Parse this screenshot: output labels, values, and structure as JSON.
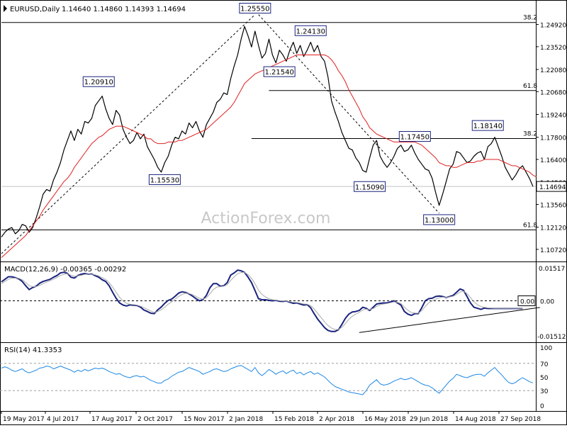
{
  "chart_data": {
    "type": "line",
    "title": "EURUSD,Daily",
    "ohlc_text": "1.14640 1.14860 1.14393 1.14694",
    "last_price": "1.14694",
    "watermark": "ActionForex.com",
    "x_ticks": [
      "19 May 2017",
      "4 Jul 2017",
      "17 Aug 2017",
      "2 Oct 2017",
      "15 Nov 2017",
      "2 Jan 2018",
      "15 Feb 2018",
      "2 Apr 2018",
      "16 May 2018",
      "29 Jun 2018",
      "14 Aug 2018",
      "27 Sep 2018"
    ],
    "price_panel": {
      "ylim": [
        1.1,
        1.262
      ],
      "y_ticks": [
        "1.24920",
        "1.23520",
        "1.22080",
        "1.20680",
        "1.19240",
        "1.17800",
        "1.16400",
        "1.14960",
        "1.13560",
        "1.12120",
        "1.10720"
      ],
      "series": [
        {
          "type": "close",
          "color": "#000000",
          "values": [
            1.115,
            1.118,
            1.12,
            1.121,
            1.117,
            1.119,
            1.123,
            1.122,
            1.118,
            1.121,
            1.127,
            1.134,
            1.142,
            1.145,
            1.144,
            1.151,
            1.156,
            1.162,
            1.17,
            1.176,
            1.182,
            1.176,
            1.183,
            1.18,
            1.188,
            1.187,
            1.19,
            1.198,
            1.201,
            1.204,
            1.196,
            1.19,
            1.186,
            1.195,
            1.192,
            1.183,
            1.178,
            1.174,
            1.176,
            1.181,
            1.177,
            1.18,
            1.172,
            1.168,
            1.164,
            1.159,
            1.156,
            1.162,
            1.166,
            1.173,
            1.178,
            1.177,
            1.182,
            1.18,
            1.187,
            1.184,
            1.188,
            1.182,
            1.178,
            1.186,
            1.19,
            1.194,
            1.2,
            1.202,
            1.206,
            1.205,
            1.215,
            1.223,
            1.23,
            1.24,
            1.248,
            1.242,
            1.235,
            1.245,
            1.236,
            1.228,
            1.231,
            1.24,
            1.23,
            1.225,
            1.233,
            1.23,
            1.226,
            1.233,
            1.238,
            1.231,
            1.236,
            1.229,
            1.233,
            1.238,
            1.232,
            1.236,
            1.229,
            1.226,
            1.216,
            1.201,
            1.194,
            1.188,
            1.181,
            1.176,
            1.171,
            1.17,
            1.165,
            1.162,
            1.157,
            1.156,
            1.165,
            1.173,
            1.176,
            1.166,
            1.162,
            1.159,
            1.162,
            1.166,
            1.171,
            1.173,
            1.169,
            1.17,
            1.173,
            1.168,
            1.164,
            1.161,
            1.158,
            1.157,
            1.152,
            1.143,
            1.135,
            1.142,
            1.15,
            1.158,
            1.161,
            1.169,
            1.168,
            1.165,
            1.162,
            1.163,
            1.166,
            1.168,
            1.169,
            1.164,
            1.172,
            1.174,
            1.178,
            1.172,
            1.166,
            1.159,
            1.155,
            1.151,
            1.154,
            1.158,
            1.16,
            1.156,
            1.152,
            1.1469
          ]
        },
        {
          "type": "ma",
          "color": "#e02020",
          "values": [
            1.102,
            1.104,
            1.106,
            1.108,
            1.11,
            1.112,
            1.114,
            1.116,
            1.119,
            1.122,
            1.125,
            1.128,
            1.132,
            1.135,
            1.138,
            1.141,
            1.144,
            1.147,
            1.15,
            1.152,
            1.155,
            1.159,
            1.162,
            1.165,
            1.168,
            1.171,
            1.174,
            1.176,
            1.178,
            1.179,
            1.181,
            1.183,
            1.184,
            1.185,
            1.185,
            1.185,
            1.184,
            1.183,
            1.182,
            1.181,
            1.18,
            1.179,
            1.177,
            1.177,
            1.175,
            1.174,
            1.174,
            1.174,
            1.175,
            1.175,
            1.175,
            1.176,
            1.176,
            1.177,
            1.178,
            1.179,
            1.18,
            1.181,
            1.182,
            1.183,
            1.185,
            1.187,
            1.189,
            1.191,
            1.193,
            1.195,
            1.197,
            1.2,
            1.204,
            1.208,
            1.212,
            1.214,
            1.216,
            1.218,
            1.219,
            1.22,
            1.221,
            1.222,
            1.223,
            1.224,
            1.225,
            1.226,
            1.227,
            1.228,
            1.229,
            1.23,
            1.23,
            1.23,
            1.23,
            1.23,
            1.23,
            1.23,
            1.23,
            1.23,
            1.229,
            1.227,
            1.224,
            1.22,
            1.217,
            1.213,
            1.208,
            1.204,
            1.2,
            1.196,
            1.191,
            1.188,
            1.184,
            1.182,
            1.18,
            1.179,
            1.178,
            1.177,
            1.176,
            1.175,
            1.175,
            1.175,
            1.175,
            1.175,
            1.175,
            1.175,
            1.174,
            1.173,
            1.171,
            1.169,
            1.167,
            1.165,
            1.162,
            1.161,
            1.16,
            1.16,
            1.159,
            1.159,
            1.16,
            1.161,
            1.162,
            1.162,
            1.162,
            1.163,
            1.163,
            1.164,
            1.164,
            1.164,
            1.164,
            1.164,
            1.163,
            1.162,
            1.161,
            1.16,
            1.16,
            1.159,
            1.158,
            1.157,
            1.156,
            1.154,
            1.153
          ]
        }
      ],
      "annotations": [
        {
          "label": "1.25550",
          "x": 73,
          "y": 1.2555
        },
        {
          "label": "1.24130",
          "x": 89,
          "y": 1.2413
        },
        {
          "label": "1.21540",
          "x": 80,
          "y": 1.2154
        },
        {
          "label": "1.20910",
          "x": 28,
          "y": 1.2091
        },
        {
          "label": "1.15530",
          "x": 47,
          "y": 1.1553
        },
        {
          "label": "1.15090",
          "x": 106,
          "y": 1.1509
        },
        {
          "label": "1.17450",
          "x": 119,
          "y": 1.1745
        },
        {
          "label": "1.18140",
          "x": 140,
          "y": 1.1814
        },
        {
          "label": "1.13000",
          "x": 126,
          "y": 1.13
        }
      ],
      "fib_levels": [
        {
          "label": "38.2",
          "y": 1.2505,
          "x_start": 0
        },
        {
          "label": "61.8",
          "y": 1.2075,
          "x_start": 77
        },
        {
          "label": "38.2",
          "y": 1.1772,
          "x_start": 72
        },
        {
          "label": "61.8",
          "y": 1.1195,
          "x_start": 0
        }
      ],
      "trend_lines": [
        {
          "x1": 0,
          "y1": 1.1045,
          "x2": 73,
          "y2": 1.2555
        },
        {
          "x1": 74,
          "y1": 1.2555,
          "x2": 126,
          "y2": 1.13
        }
      ]
    },
    "macd_panel": {
      "label": "MACD(12,26,9) -0.00365 -0.00292",
      "ylim": [
        -0.019,
        0.018
      ],
      "y_ticks": [
        "0.01517",
        "0.00",
        "-0.01512"
      ],
      "zero_tag": "0.00",
      "series": [
        {
          "type": "macd",
          "color": "#1a237e",
          "values": [
            0.0088,
            0.01,
            0.0112,
            0.0112,
            0.0108,
            0.0102,
            0.009,
            0.007,
            0.0052,
            0.0062,
            0.0068,
            0.0082,
            0.009,
            0.0095,
            0.01,
            0.011,
            0.0118,
            0.013,
            0.0133,
            0.0128,
            0.011,
            0.0106,
            0.0118,
            0.0124,
            0.0127,
            0.0124,
            0.0125,
            0.0117,
            0.011,
            0.0098,
            0.009,
            0.007,
            0.004,
            0.0012,
            -0.001,
            -0.002,
            -0.0024,
            -0.0019,
            -0.0021,
            -0.0022,
            -0.0029,
            -0.0043,
            -0.005,
            -0.0058,
            -0.006,
            -0.0042,
            -0.0029,
            -0.0012,
            0.0002,
            0.0008,
            0.0021,
            0.0036,
            0.0042,
            0.0039,
            0.0032,
            0.0022,
            0.001,
            0.0,
            0.0005,
            0.0025,
            0.006,
            0.008,
            0.008,
            0.0068,
            0.007,
            0.0085,
            0.012,
            0.013,
            0.0143,
            0.014,
            0.0132,
            0.011,
            0.0085,
            0.0048,
            0.001,
            0.0005,
            0.0005,
            0.0002,
            0.0,
            0.0002,
            -0.0002,
            -0.0003,
            -0.0001,
            -0.0007,
            -0.0012,
            -0.001,
            -0.0015,
            -0.002,
            -0.0018,
            -0.0032,
            -0.006,
            -0.0085,
            -0.0105,
            -0.0125,
            -0.0138,
            -0.0143,
            -0.0143,
            -0.0135,
            -0.011,
            -0.0082,
            -0.0062,
            -0.0052,
            -0.005,
            -0.0045,
            -0.003,
            -0.0035,
            -0.0045,
            -0.003,
            -0.0015,
            -0.0012,
            -0.001,
            -0.001,
            -0.0005,
            0.0,
            -0.001,
            -0.002,
            -0.005,
            -0.0062,
            -0.0068,
            -0.006,
            -0.006,
            -0.0032,
            0.0,
            0.001,
            0.0012,
            0.002,
            0.0022,
            0.002,
            0.0015,
            0.002,
            0.0025,
            0.004,
            0.0055,
            0.0049,
            0.002,
            -0.001,
            -0.003,
            -0.0035,
            -0.004,
            -0.0034,
            -0.0036,
            -0.0036,
            -0.0036,
            -0.0036,
            -0.0036,
            -0.0036,
            -0.0036,
            -0.0036,
            -0.0036,
            -0.0036,
            -0.0036
          ]
        },
        {
          "type": "signal",
          "color": "#aaaaaa",
          "values": [
            0.008,
            0.009,
            0.01,
            0.0105,
            0.0106,
            0.0105,
            0.0098,
            0.0085,
            0.007,
            0.0066,
            0.0066,
            0.0072,
            0.008,
            0.0087,
            0.0093,
            0.0101,
            0.0109,
            0.0118,
            0.0124,
            0.0126,
            0.012,
            0.0114,
            0.0116,
            0.0119,
            0.0123,
            0.0124,
            0.0124,
            0.0121,
            0.0116,
            0.0108,
            0.0099,
            0.0085,
            0.0064,
            0.004,
            0.0016,
            -0.0001,
            -0.0012,
            -0.0016,
            -0.0018,
            -0.002,
            -0.0025,
            -0.0032,
            -0.004,
            -0.0048,
            -0.0054,
            -0.005,
            -0.0042,
            -0.003,
            -0.0016,
            -0.0005,
            0.0008,
            0.002,
            0.003,
            0.0035,
            0.0034,
            0.0029,
            0.002,
            0.0012,
            0.0008,
            0.0014,
            0.0032,
            0.0052,
            0.0064,
            0.0066,
            0.0068,
            0.0075,
            0.0095,
            0.0112,
            0.0126,
            0.0132,
            0.0132,
            0.0122,
            0.0105,
            0.008,
            0.005,
            0.003,
            0.0018,
            0.001,
            0.0005,
            0.0003,
            0.0001,
            -0.0001,
            -0.0001,
            -0.0004,
            -0.0007,
            -0.0008,
            -0.0011,
            -0.0015,
            -0.0016,
            -0.0023,
            -0.0038,
            -0.0058,
            -0.0078,
            -0.0098,
            -0.0115,
            -0.0127,
            -0.0134,
            -0.0134,
            -0.0124,
            -0.0106,
            -0.0087,
            -0.0072,
            -0.0062,
            -0.0054,
            -0.0043,
            -0.0039,
            -0.0041,
            -0.0036,
            -0.0026,
            -0.0019,
            -0.0015,
            -0.0013,
            -0.0009,
            -0.0005,
            -0.0007,
            -0.0013,
            -0.003,
            -0.0044,
            -0.0055,
            -0.0057,
            -0.0058,
            -0.0046,
            -0.0026,
            -0.001,
            0.0,
            0.0008,
            0.0014,
            0.0017,
            0.0016,
            0.0018,
            0.0021,
            0.003,
            0.0041,
            0.0045,
            0.0034,
            0.0015,
            -0.0005,
            -0.0018,
            -0.0027,
            -0.003,
            -0.0033,
            -0.0034,
            -0.0035,
            -0.0035,
            -0.0035,
            -0.0035,
            -0.0035,
            -0.0035,
            -0.0035,
            -0.0035,
            -0.0035
          ]
        }
      ],
      "trend_line": {
        "x1": 103,
        "y1": -0.0148,
        "x2": 155,
        "y2": -0.0031
      }
    },
    "rsi_panel": {
      "label": "RSI(14) 41.3353",
      "ylim": [
        0,
        100
      ],
      "y_ticks": [
        "100",
        "70",
        "50",
        "30",
        "0"
      ],
      "levels": [
        70,
        30
      ],
      "series": [
        {
          "type": "rsi",
          "color": "#1e88e5",
          "values": [
            63,
            65,
            63,
            60,
            58,
            60,
            62,
            58,
            56,
            58,
            60,
            63,
            64,
            66,
            65,
            62,
            64,
            66,
            64,
            62,
            60,
            57,
            60,
            58,
            61,
            59,
            61,
            63,
            62,
            63,
            61,
            58,
            56,
            54,
            55,
            52,
            50,
            49,
            51,
            52,
            50,
            51,
            48,
            45,
            43,
            41,
            41,
            45,
            47,
            51,
            54,
            57,
            58,
            61,
            64,
            62,
            60,
            58,
            54,
            56,
            58,
            61,
            62,
            60,
            58,
            59,
            62,
            64,
            66,
            67,
            64,
            61,
            58,
            64,
            56,
            52,
            56,
            61,
            58,
            54,
            57,
            59,
            55,
            58,
            60,
            55,
            57,
            53,
            56,
            58,
            54,
            56,
            53,
            50,
            45,
            40,
            36,
            34,
            32,
            30,
            28,
            27,
            26,
            25,
            24,
            30,
            38,
            42,
            46,
            40,
            38,
            39,
            41,
            44,
            46,
            48,
            46,
            47,
            49,
            46,
            43,
            40,
            38,
            37,
            34,
            30,
            26,
            32,
            38,
            44,
            48,
            54,
            52,
            50,
            49,
            51,
            53,
            54,
            54,
            51,
            56,
            60,
            64,
            58,
            53,
            47,
            42,
            40,
            42,
            46,
            49,
            46,
            43,
            41.3353
          ]
        }
      ]
    }
  }
}
